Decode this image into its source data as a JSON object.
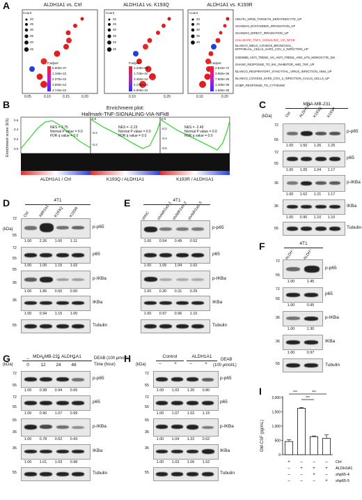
{
  "panel_letters": {
    "A": "A",
    "B": "B",
    "C": "C",
    "D": "D",
    "E": "E",
    "F": "F",
    "G": "G",
    "H": "H",
    "I": "I"
  },
  "panelA": {
    "titles": [
      "ALDH1A1 vs. Ctrl",
      "ALDH1A1 vs. K193Q",
      "ALDH1A1 vs. K193R"
    ],
    "count_label": "Count",
    "counts": [
      [
        "20",
        "25",
        "30",
        "35",
        "40",
        "45"
      ],
      [
        "20",
        "25",
        "30",
        "35",
        "40",
        "45"
      ],
      [
        "20",
        "25",
        "30",
        "35",
        "40"
      ]
    ],
    "padj_label": "P.adjust",
    "padj_values": [
      [
        "5.600e-37",
        "1.185e-22",
        "2.370e-22",
        "3.555e-22",
        "4.740e-22"
      ],
      [
        "3.230e-69",
        "1.725e-34",
        "3.450e-34",
        "5.175e-34",
        "6.900e-34"
      ],
      [
        "2.810e-72",
        "3.950e-36",
        "7.900e-36",
        "1.185e-35",
        "1.580e-35"
      ]
    ],
    "xticks": [
      [
        "0.05",
        "0.10",
        "0.15",
        "0.20"
      ],
      [
        "0.10",
        "0.20"
      ],
      [
        "0.10",
        "0.20"
      ]
    ],
    "terms": [
      "HINATA_NFKB_TARGETS_KERATINOCYTE_UP",
      "GHANDHI_BYSTANDER_IRRADIATION_UP",
      "GHANDHI_DIRECT_IRRADIATION_UP",
      "HALLMARK_TNFA_SIGNALING_VIA_NFKB",
      "BLANCO_MELO_COVID19_BRONCHIAL_",
      "EPITHELIAL_CELLS_SARS_COV_2_INFECTION_UP",
      "GSE9988_ANTI_TREM1_VS_ANTI_TREM1_AND_LPS_MONOCYTE_DN",
      "ZHANG_RESPONSE_TO_IKK_INHIBITOR_AND_TNF_UP",
      "BLANCO_RESPIRATORY_SYNCYTIAL_VIRUS_INFECTION_A594_UP",
      "BLANCO_COVID19_SARS_COV_2_INFECTION_CALU3_CELLS_UP",
      "GOBP_RESPONSE_TO_CYTOKINE"
    ],
    "highlight_color": "#e8202a"
  },
  "panelB": {
    "title1": "Enrichment plot:",
    "title2": "Hallmark-TNF-SIGNALING-VIA-NFkB",
    "ylabel": "Enrichment score (ES)",
    "plots": [
      {
        "nes": "NES = 2.75",
        "p": "Normal P value = 0.0",
        "fdr": "FDR q value = 0.0",
        "label": "ALDH1A1 / Ctrl",
        "ticks": [
          "0.6",
          "0.4",
          "0.2",
          "0.0"
        ]
      },
      {
        "nes": "NES = -2.23",
        "p": "Normal P value = 0.0",
        "fdr": "FDR q value = 0.0",
        "label": "K193Q / ALDH1A1",
        "ticks": [
          "0.0",
          "-0.2",
          "-0.4"
        ]
      },
      {
        "nes": "NES = -2.45",
        "p": "Normal P value = 0.0",
        "fdr": "FDR q value = 0.0",
        "label": "K193R / ALDH1A1",
        "ticks": [
          "0.0",
          "-0.2",
          "-0.4",
          "-0.6"
        ]
      }
    ]
  },
  "panelC": {
    "header": "MDA-MB-231",
    "kda": "(kDa)",
    "lanes": [
      "Ctrl",
      "ALDH1A1",
      "K193Q",
      "K193R"
    ],
    "proteins": [
      "p-p65",
      "p65",
      "p-IKBa",
      "IKBa",
      "Tubulin"
    ],
    "mw": [
      "72",
      "55",
      "72",
      "55",
      "36",
      "36",
      "55"
    ],
    "quants": [
      [
        "1.00",
        "1.50",
        "1.26",
        "1.25"
      ],
      [
        "1.00",
        "1.05",
        "1.04",
        "1.17"
      ],
      [
        "1.00",
        "1.62",
        "1.21",
        "1.17"
      ],
      [
        "1.00",
        "0.90",
        "1.10",
        "1.10"
      ]
    ]
  },
  "panelD": {
    "header": "4T1",
    "kda": "(kDa)",
    "lanes": [
      "Ctrl",
      "Aldh1a1",
      "K193Q",
      "K193R"
    ],
    "proteins": [
      "p-p65",
      "p65",
      "p-IKBa",
      "IKBa",
      "Tubulin"
    ],
    "mw": [
      "72",
      "55",
      "72",
      "55",
      "55",
      "36",
      "36",
      "55"
    ],
    "quants": [
      [
        "1.00",
        "2.26",
        "1.00",
        "1.11"
      ],
      [
        "1.00",
        "1.05",
        "1.15",
        "1.02"
      ],
      [
        "1.00",
        "1.86",
        "0.50",
        "0.50"
      ],
      [
        "1.00",
        "0.94",
        "1.15",
        "1.00"
      ]
    ]
  },
  "panelE": {
    "header": "4T1",
    "lanes": [
      "shNC",
      "shAldh1a1-1",
      "shAldh1a1-2",
      "shAldh1a1-3"
    ],
    "proteins": [
      "p-p65",
      "p65",
      "p-IKBa",
      "IKBa",
      "Tubulin"
    ],
    "quants": [
      [
        "1.00",
        "0.54",
        "0.49",
        "0.52"
      ],
      [
        "1.00",
        "1.05",
        "1.04",
        "1.02"
      ],
      [
        "1.00",
        "0.30",
        "0.31",
        "0.29"
      ],
      [
        "1.00",
        "0.97",
        "0.96",
        "1.10"
      ]
    ]
  },
  "panelF": {
    "header": "4T1",
    "lanes": [
      "ALDH⁻",
      "ALDH⁺"
    ],
    "proteins": [
      "p-p65",
      "p65",
      "p-IKBa",
      "IKBa",
      "Tubulin"
    ],
    "mw": [
      "72",
      "55",
      "72",
      "55",
      "36",
      "36",
      "55"
    ],
    "quants": [
      [
        "1.00",
        "1.45"
      ],
      [
        "1.00",
        "0.95"
      ],
      [
        "1.00",
        "1.30"
      ],
      [
        "1.00",
        "0.97"
      ]
    ]
  },
  "panelG": {
    "header": "MDA-MB-231 ALDH1A1",
    "kda": "(kDa)",
    "deab": "DEAB (100 μmol/L)",
    "signs": [
      "–",
      "+",
      "+",
      "+"
    ],
    "time_label": "Time (hour)",
    "times": [
      "0",
      "12",
      "24",
      "48"
    ],
    "proteins": [
      "p-p65",
      "p65",
      "p-IKBa",
      "IKBa",
      "Tubulin"
    ],
    "mw": [
      "72",
      "55",
      "72",
      "55",
      "55",
      "36",
      "36",
      "55"
    ],
    "quants": [
      [
        "1.00",
        "0.98",
        "0.94",
        "0.65"
      ],
      [
        "1.00",
        "0.90",
        "1.07",
        "0.99"
      ],
      [
        "1.00",
        "0.78",
        "0.62",
        "0.43"
      ],
      [
        "1.00",
        "1.01",
        "1.03",
        "0.98"
      ]
    ]
  },
  "panelH": {
    "kda": "(kDa)",
    "groups": [
      "Control",
      "ALDH1A1"
    ],
    "deab": "DEAB",
    "deab_unit": "(100 μmol/L)",
    "signs": [
      "–",
      "+",
      "–",
      "+"
    ],
    "proteins": [
      "p-p65",
      "p65",
      "p-IKBa",
      "IKBa",
      "Tubulin"
    ],
    "mw": [
      "72",
      "55",
      "72",
      "55",
      "55",
      "36",
      "36",
      "55"
    ],
    "quants": [
      [
        "1.00",
        "1.02",
        "1.20",
        "0.80"
      ],
      [
        "1.00",
        "1.07",
        "1.02",
        "1.15"
      ],
      [
        "1.00",
        "1.04",
        "1.22",
        "0.62"
      ],
      [
        "1.00",
        "1.03",
        "1.06",
        "1.52"
      ]
    ]
  },
  "chart_data": {
    "type": "bar",
    "categories": [
      "1",
      "2",
      "3",
      "4"
    ],
    "values": [
      460,
      1620,
      630,
      570
    ],
    "errors": [
      60,
      30,
      25,
      120
    ],
    "ylabel": "GM-CSF (pg/mL)",
    "yticks": [
      "0",
      "500",
      "1,000",
      "1,500",
      "2,000"
    ],
    "ylim": [
      0,
      2000
    ],
    "row_labels": [
      "Ctrl",
      "ALDH1A1",
      "shp65-4",
      "shp65-5"
    ],
    "row_signs": [
      [
        "+",
        "–",
        "–",
        "–"
      ],
      [
        "–",
        "+",
        "+",
        "+"
      ],
      [
        "–",
        "–",
        "+",
        "–"
      ],
      [
        "–",
        "–",
        "–",
        "+"
      ]
    ],
    "sig": [
      "***",
      "***",
      "***"
    ]
  }
}
